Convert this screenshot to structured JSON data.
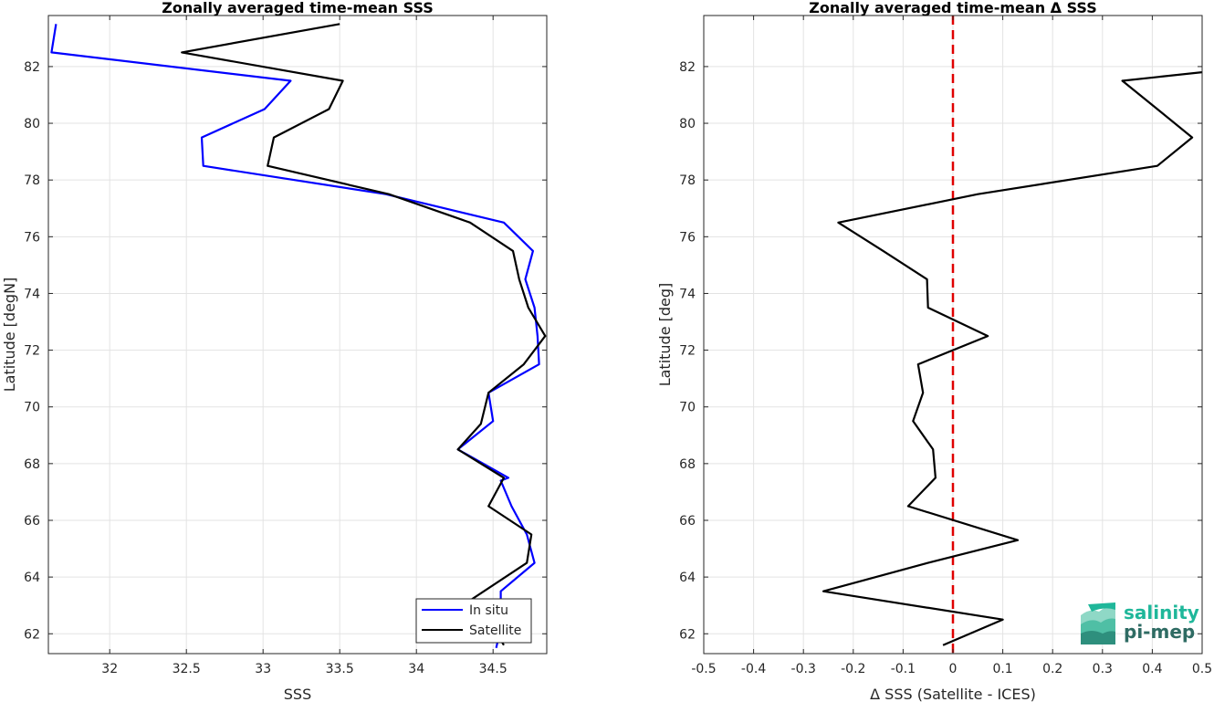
{
  "chart_data": [
    {
      "type": "line",
      "title": "Zonally averaged time-mean SSS",
      "xlabel": "SSS",
      "ylabel": "Latitude [degN]",
      "xlim": [
        31.6,
        34.85
      ],
      "ylim": [
        61.3,
        83.8
      ],
      "xticks": [
        32,
        32.5,
        33,
        33.5,
        34,
        34.5
      ],
      "yticks": [
        62,
        64,
        66,
        68,
        70,
        72,
        74,
        76,
        78,
        80,
        82
      ],
      "grid": true,
      "legend_position": "bottom-right",
      "series": [
        {
          "name": "In situ",
          "color": "#0000ff",
          "x": [
            34.52,
            34.55,
            34.55,
            34.77,
            34.72,
            34.62,
            34.55,
            34.6,
            34.27,
            34.5,
            34.47,
            34.8,
            34.79,
            34.77,
            34.71,
            34.76,
            34.57,
            33.8,
            32.61,
            32.6,
            33.01,
            33.18,
            31.62,
            31.65
          ],
          "y": [
            61.5,
            62.2,
            63.5,
            64.5,
            65.5,
            66.5,
            67.4,
            67.5,
            68.5,
            69.5,
            70.5,
            71.5,
            72.5,
            73.5,
            74.5,
            75.5,
            76.5,
            77.5,
            78.5,
            79.5,
            80.5,
            81.5,
            82.5,
            83.5
          ]
        },
        {
          "name": "Satellite",
          "color": "#000000",
          "x": [
            34.57,
            34.5,
            34.3,
            34.72,
            34.75,
            34.47,
            34.57,
            34.27,
            34.42,
            34.47,
            34.7,
            34.84,
            34.73,
            34.67,
            34.63,
            34.35,
            33.82,
            33.03,
            33.07,
            33.43,
            33.52,
            32.47,
            33.5
          ],
          "y": [
            61.6,
            62.2,
            63.0,
            64.5,
            65.5,
            66.5,
            67.5,
            68.5,
            69.4,
            70.5,
            71.5,
            72.5,
            73.5,
            74.5,
            75.5,
            76.5,
            77.5,
            78.5,
            79.5,
            80.5,
            81.5,
            82.5,
            83.5
          ]
        }
      ]
    },
    {
      "type": "line",
      "title": "Zonally averaged time-mean Δ SSS",
      "xlabel": "Δ SSS (Satellite - ICES)",
      "ylabel": "Latitude [deg]",
      "xlim": [
        -0.5,
        0.5
      ],
      "ylim": [
        61.3,
        83.8
      ],
      "xticks": [
        -0.5,
        -0.4,
        -0.3,
        -0.2,
        -0.1,
        0,
        0.1,
        0.2,
        0.3,
        0.4,
        0.5
      ],
      "yticks": [
        62,
        64,
        66,
        68,
        70,
        72,
        74,
        76,
        78,
        80,
        82
      ],
      "grid": true,
      "reference_line": {
        "x": 0,
        "color": "#e00000",
        "style": "dashed"
      },
      "series": [
        {
          "color": "#000000",
          "x": [
            -0.02,
            0.1,
            -0.26,
            -0.05,
            0.13,
            -0.09,
            -0.035,
            -0.04,
            -0.08,
            -0.06,
            -0.07,
            0.07,
            -0.05,
            -0.052,
            -0.14,
            -0.23,
            0.05,
            0.41,
            0.48,
            0.41,
            0.34,
            0.5
          ],
          "y": [
            61.6,
            62.5,
            63.5,
            64.5,
            65.3,
            66.5,
            67.5,
            68.5,
            69.5,
            70.5,
            71.5,
            72.5,
            73.5,
            74.5,
            75.5,
            76.5,
            77.5,
            78.5,
            79.5,
            80.5,
            81.5,
            81.8
          ]
        }
      ]
    }
  ],
  "legend": {
    "items": [
      {
        "label": "In situ",
        "color": "#0000ff"
      },
      {
        "label": "Satellite",
        "color": "#000000"
      }
    ]
  },
  "logo": {
    "line1": "salinity",
    "line2": "pi-mep",
    "color_dark": "#2e6b63",
    "color_light": "#1fb79a"
  }
}
